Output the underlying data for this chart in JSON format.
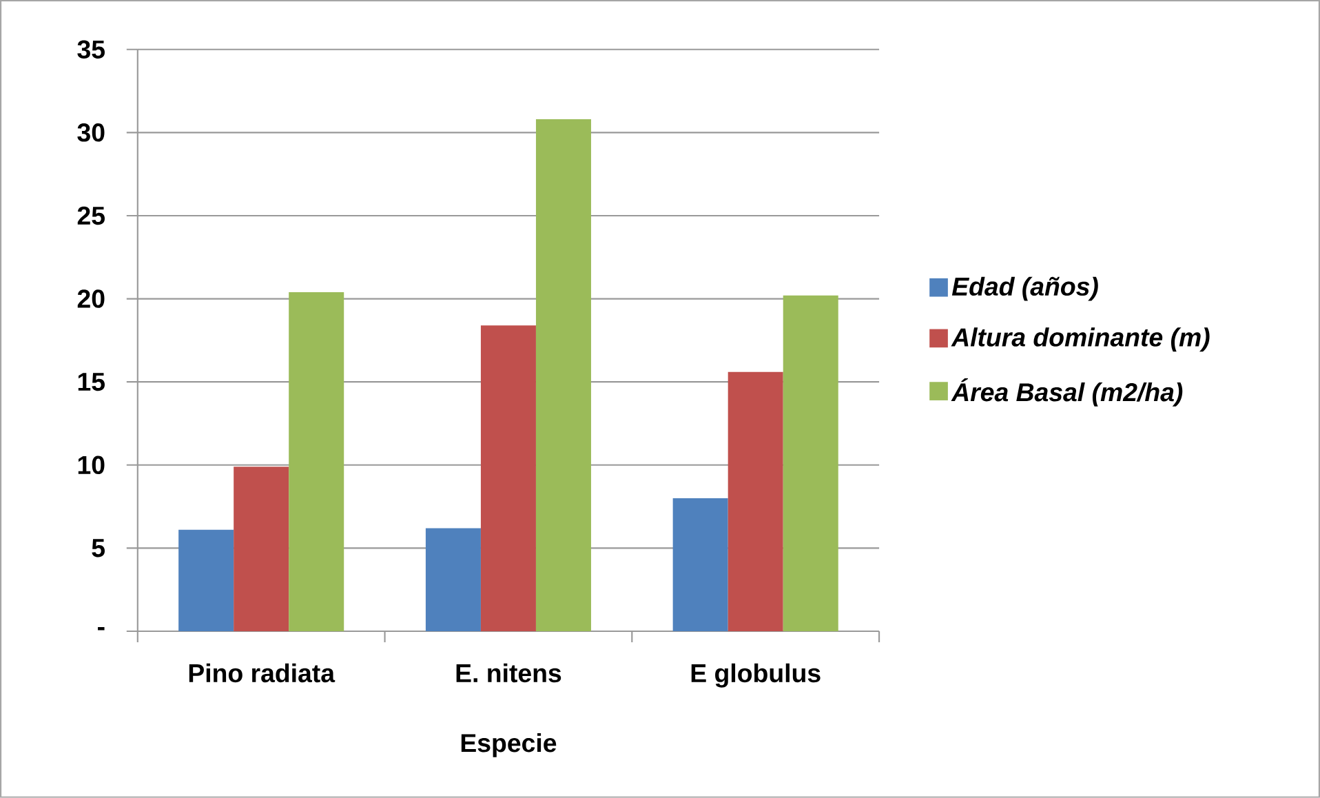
{
  "chart_data": {
    "type": "bar",
    "xlabel": "Especie",
    "categories": [
      "Pino radiata",
      "E. nitens",
      "E globulus"
    ],
    "series": [
      {
        "name": "Edad (años)",
        "color": "#4f81bd",
        "values": [
          6.1,
          6.2,
          8.0
        ]
      },
      {
        "name": "Altura dominante (m)",
        "color": "#c0504d",
        "values": [
          9.9,
          18.4,
          15.6
        ]
      },
      {
        "name": "Área Basal (m2/ha)",
        "color": "#9bbb59",
        "values": [
          20.4,
          30.8,
          20.2
        ]
      }
    ],
    "ylim": [
      0,
      35
    ],
    "yticks": [
      {
        "value": 0,
        "label": "-"
      },
      5,
      10,
      15,
      20,
      25,
      30,
      35
    ],
    "grid": "y",
    "legend": "right"
  }
}
